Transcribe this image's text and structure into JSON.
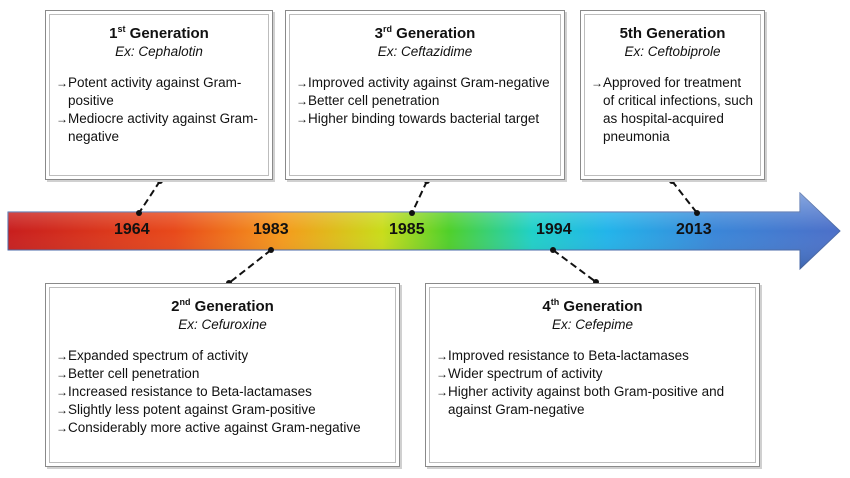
{
  "timeline": {
    "years": [
      "1964",
      "1983",
      "1985",
      "1994",
      "2013"
    ]
  },
  "generations": [
    {
      "num": "1",
      "sup": "st",
      "title_rest": " Generation",
      "example": "Ex: Cephalotin",
      "bullets": [
        "Potent activity against Gram-positive",
        "Mediocre activity against Gram-negative"
      ]
    },
    {
      "num": "2",
      "sup": "nd",
      "title_rest": " Generation",
      "example": "Ex: Cefuroxine",
      "bullets": [
        "Expanded spectrum of activity",
        "Better cell penetration",
        "Increased resistance to Beta-lactamases",
        "Slightly less potent against Gram-positive",
        "Considerably more active against Gram-negative"
      ]
    },
    {
      "num": "3",
      "sup": "rd",
      "title_rest": " Generation",
      "example": "Ex: Ceftazidime",
      "bullets": [
        "Improved activity against Gram-negative",
        "Better cell penetration",
        "Higher binding towards bacterial target"
      ]
    },
    {
      "num": "4",
      "sup": "th",
      "title_rest": " Generation",
      "example": "Ex: Cefepime",
      "bullets": [
        "Improved resistance to Beta-lactamases",
        "Wider spectrum of activity",
        "Higher activity against both Gram-positive and against Gram-negative"
      ]
    },
    {
      "num": "5th Generation",
      "sup": "",
      "title_rest": "",
      "example": "Ex: Ceftobiprole",
      "bullets": [
        "Approved for treatment of critical infections, such as hospital-acquired pneumonia"
      ]
    }
  ],
  "bullet_glyph": "→"
}
